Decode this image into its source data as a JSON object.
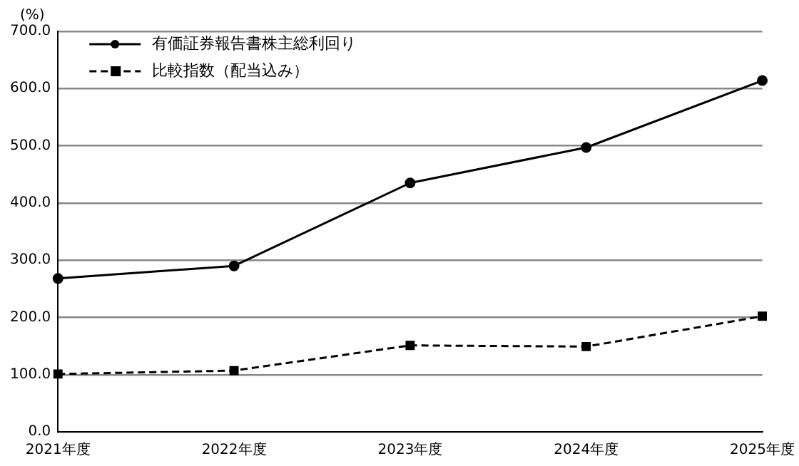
{
  "chart_data": {
    "type": "line",
    "ylabel": "(%)",
    "categories": [
      "2021年度",
      "2022年度",
      "2023年度",
      "2024年度",
      "2025年度"
    ],
    "series": [
      {
        "name": "有価証券報告書株主総利回り",
        "color": "#000000",
        "values": [
          268,
          290,
          435,
          497,
          614
        ],
        "marker": "circle",
        "line_style": "solid"
      },
      {
        "name": "比較指数（配当込み）",
        "color": "#000000",
        "values": [
          101,
          107,
          151,
          149,
          202
        ],
        "marker": "square",
        "line_style": "dashed"
      }
    ],
    "ylim": [
      0,
      700
    ],
    "yticks": [
      {
        "value": 0,
        "label": "0.0"
      },
      {
        "value": 100,
        "label": "100.0"
      },
      {
        "value": 200,
        "label": "200.0"
      },
      {
        "value": 300,
        "label": "300.0"
      },
      {
        "value": 400,
        "label": "400.0"
      },
      {
        "value": 500,
        "label": "500.0"
      },
      {
        "value": 600,
        "label": "600.0"
      },
      {
        "value": 700,
        "label": "700.0"
      }
    ],
    "grid": "y",
    "legend": "top left"
  }
}
